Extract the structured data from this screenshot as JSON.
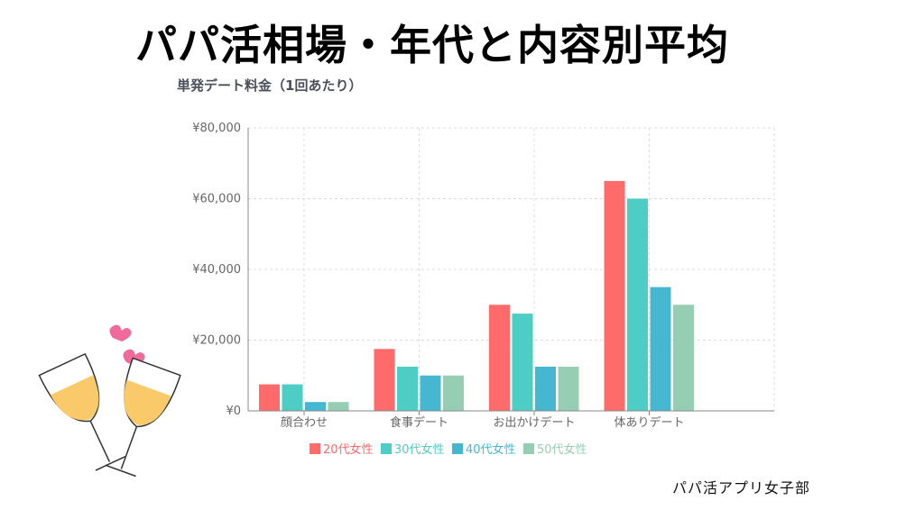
{
  "title": "パパ活相場・年代と内容別平均",
  "credit": "パパ活アプリ女子部",
  "chart_data": {
    "type": "bar",
    "title": "単発デート料金（1回あたり）",
    "xlabel": "",
    "ylabel": "",
    "ylim": [
      0,
      80000
    ],
    "yticks": [
      0,
      20000,
      40000,
      60000,
      80000
    ],
    "ytick_labels": [
      "¥0",
      "¥20,000",
      "¥40,000",
      "¥60,000",
      "¥80,000"
    ],
    "grid": true,
    "legend_position": "bottom",
    "categories": [
      "顔合わせ",
      "食事デート",
      "お出かけデート",
      "体ありデート"
    ],
    "series": [
      {
        "name": "20代女性",
        "color": "#ff6b6b",
        "values": [
          7500,
          17500,
          30000,
          65000
        ]
      },
      {
        "name": "30代女性",
        "color": "#4ecdc4",
        "values": [
          7500,
          12500,
          27500,
          60000
        ]
      },
      {
        "name": "40代女性",
        "color": "#45b7d1",
        "values": [
          2500,
          10000,
          12500,
          35000
        ]
      },
      {
        "name": "50代女性",
        "color": "#96ceb4",
        "values": [
          2500,
          10000,
          12500,
          30000
        ]
      }
    ]
  }
}
